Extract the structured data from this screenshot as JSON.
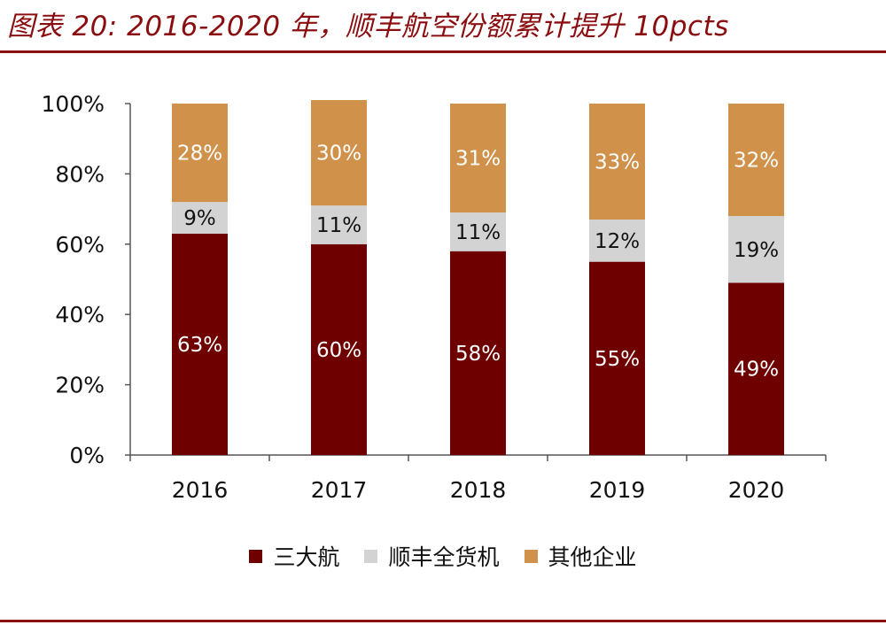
{
  "title": "图表 20: 2016-2020 年，顺丰航空份额累计提升 10pcts",
  "chart_data": {
    "type": "bar",
    "stacked": true,
    "categories": [
      "2016",
      "2017",
      "2018",
      "2019",
      "2020"
    ],
    "series": [
      {
        "name": "三大航",
        "color": "#6e0000",
        "label_color": "#ffffff",
        "values": [
          63,
          60,
          58,
          55,
          49
        ]
      },
      {
        "name": "顺丰全货机",
        "color": "#d3d3d3",
        "label_color": "#111111",
        "values": [
          9,
          11,
          11,
          12,
          19
        ]
      },
      {
        "name": "其他企业",
        "color": "#d0924a",
        "label_color": "#ffffff",
        "values": [
          28,
          30,
          31,
          33,
          32
        ]
      }
    ],
    "ylim": [
      0,
      100
    ],
    "yticks": [
      "0%",
      "20%",
      "40%",
      "60%",
      "80%",
      "100%"
    ],
    "xlabel": "",
    "ylabel": "",
    "legend_position": "bottom"
  }
}
